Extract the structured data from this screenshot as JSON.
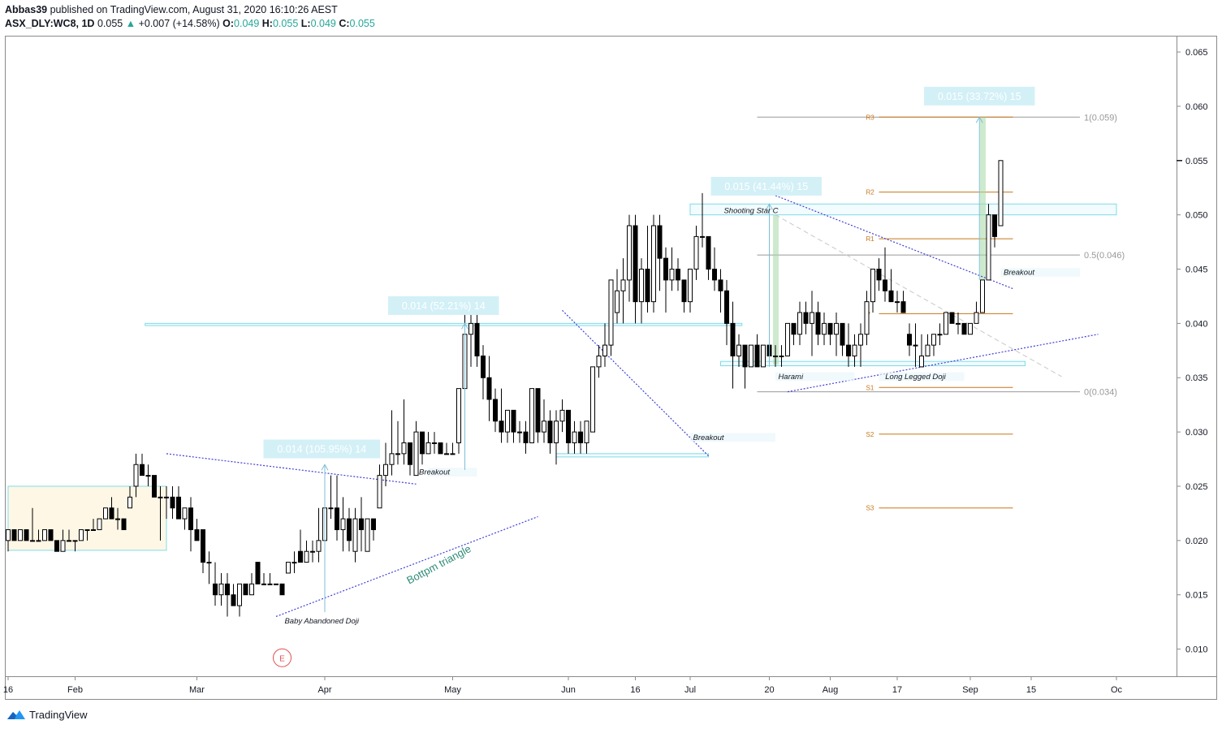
{
  "header": {
    "publisher": "Abbas39",
    "published_text": "published on TradingView.com, August 31, 2020 16:10:26 AEST",
    "symbol": "ASX_DLY:WC8, 1D",
    "last": "0.055",
    "change": "+0.007 (+14.58%)",
    "change_arrow": "▲",
    "o_label": "O:",
    "o_value": "0.049",
    "h_label": "H:",
    "h_value": "0.055",
    "l_label": "L:",
    "l_value": "0.049",
    "c_label": "C:",
    "c_value": "0.055"
  },
  "footer": {
    "brand": "TradingView",
    "logo_icon": "tradingview-logo-icon"
  },
  "colors": {
    "up_body": "#ffffff",
    "candle": "#000000",
    "trend": "#3f3fd9",
    "zone": "#7fdbe8",
    "zone_fill": "#fff7e6",
    "pivot": "#c8761a",
    "fib": "#999999",
    "measure_label_bg": "#d3f0f7",
    "measure_text": "#ffffff",
    "green_bar": "#a6d9a6",
    "bottom_text": "#2e8b76",
    "event_red": "#e05050"
  },
  "chart_data": {
    "type": "candlestick",
    "title": "ASX_DLY:WC8, 1D",
    "ylim": [
      0.0075,
      0.0665
    ],
    "y_ticks": [
      "0.065",
      "0.060",
      "0.055",
      "0.050",
      "0.045",
      "0.040",
      "0.035",
      "0.030",
      "0.025",
      "0.020",
      "0.015",
      "0.010"
    ],
    "x_ticks": [
      {
        "label": "16",
        "day": 0
      },
      {
        "label": "Feb",
        "day": 11
      },
      {
        "label": "Mar",
        "day": 31
      },
      {
        "label": "Apr",
        "day": 52
      },
      {
        "label": "May",
        "day": 73
      },
      {
        "label": "Jun",
        "day": 92
      },
      {
        "label": "16",
        "day": 103
      },
      {
        "label": "Jul",
        "day": 112
      },
      {
        "label": "20",
        "day": 125
      },
      {
        "label": "Aug",
        "day": 135
      },
      {
        "label": "17",
        "day": 146
      },
      {
        "label": "Sep",
        "day": 158
      },
      {
        "label": "15",
        "day": 168
      },
      {
        "label": "Oc",
        "day": 182
      }
    ],
    "last_price": "0.055",
    "candles": [
      [
        0.02,
        0.021,
        0.019,
        0.021
      ],
      [
        0.021,
        0.021,
        0.02,
        0.02
      ],
      [
        0.02,
        0.021,
        0.02,
        0.021
      ],
      [
        0.021,
        0.021,
        0.02,
        0.02
      ],
      [
        0.02,
        0.023,
        0.02,
        0.02
      ],
      [
        0.02,
        0.021,
        0.02,
        0.02
      ],
      [
        0.02,
        0.021,
        0.02,
        0.021
      ],
      [
        0.021,
        0.021,
        0.02,
        0.02
      ],
      [
        0.02,
        0.02,
        0.019,
        0.019
      ],
      [
        0.019,
        0.021,
        0.019,
        0.02
      ],
      [
        0.02,
        0.021,
        0.02,
        0.02
      ],
      [
        0.02,
        0.02,
        0.019,
        0.02
      ],
      [
        0.02,
        0.021,
        0.02,
        0.021
      ],
      [
        0.021,
        0.021,
        0.02,
        0.021
      ],
      [
        0.021,
        0.022,
        0.021,
        0.021
      ],
      [
        0.021,
        0.022,
        0.021,
        0.022
      ],
      [
        0.022,
        0.023,
        0.022,
        0.023
      ],
      [
        0.023,
        0.024,
        0.022,
        0.022
      ],
      [
        0.022,
        0.023,
        0.021,
        0.022
      ],
      [
        0.022,
        0.022,
        0.021,
        0.021
      ],
      [
        0.023,
        0.025,
        0.023,
        0.024
      ],
      [
        0.025,
        0.028,
        0.024,
        0.027
      ],
      [
        0.027,
        0.028,
        0.026,
        0.026
      ],
      [
        0.026,
        0.027,
        0.025,
        0.026
      ],
      [
        0.026,
        0.026,
        0.024,
        0.024
      ],
      [
        0.024,
        0.025,
        0.02,
        0.024
      ],
      [
        0.024,
        0.025,
        0.022,
        0.024
      ],
      [
        0.024,
        0.025,
        0.022,
        0.023
      ],
      [
        0.024,
        0.025,
        0.022,
        0.022
      ],
      [
        0.022,
        0.023,
        0.021,
        0.023
      ],
      [
        0.023,
        0.024,
        0.019,
        0.021
      ],
      [
        0.021,
        0.022,
        0.02,
        0.02
      ],
      [
        0.021,
        0.021,
        0.017,
        0.018
      ],
      [
        0.018,
        0.019,
        0.016,
        0.018
      ],
      [
        0.016,
        0.018,
        0.014,
        0.015
      ],
      [
        0.015,
        0.017,
        0.014,
        0.016
      ],
      [
        0.016,
        0.017,
        0.013,
        0.015
      ],
      [
        0.015,
        0.016,
        0.014,
        0.014
      ],
      [
        0.014,
        0.016,
        0.013,
        0.016
      ],
      [
        0.016,
        0.016,
        0.015,
        0.015
      ],
      [
        0.015,
        0.017,
        0.015,
        0.016
      ],
      [
        0.018,
        0.018,
        0.016,
        0.016
      ],
      [
        0.016,
        0.017,
        0.016,
        0.016
      ],
      [
        0.016,
        0.017,
        0.016,
        0.016
      ],
      [
        0.016,
        0.016,
        0.016,
        0.016
      ],
      [
        0.016,
        0.016,
        0.015,
        0.015
      ],
      [
        0.017,
        0.018,
        0.017,
        0.018
      ],
      [
        0.018,
        0.019,
        0.017,
        0.018
      ],
      [
        0.019,
        0.021,
        0.018,
        0.018
      ],
      [
        0.018,
        0.02,
        0.018,
        0.019
      ],
      [
        0.019,
        0.02,
        0.018,
        0.019
      ],
      [
        0.019,
        0.023,
        0.018,
        0.02
      ],
      [
        0.02,
        0.025,
        0.019,
        0.023
      ],
      [
        0.023,
        0.026,
        0.022,
        0.023
      ],
      [
        0.023,
        0.026,
        0.02,
        0.021
      ],
      [
        0.021,
        0.024,
        0.019,
        0.022
      ],
      [
        0.022,
        0.023,
        0.019,
        0.02
      ],
      [
        0.019,
        0.023,
        0.018,
        0.022
      ],
      [
        0.022,
        0.024,
        0.019,
        0.021
      ],
      [
        0.019,
        0.022,
        0.019,
        0.022
      ],
      [
        0.022,
        0.022,
        0.02,
        0.021
      ],
      [
        0.023,
        0.027,
        0.023,
        0.026
      ],
      [
        0.026,
        0.029,
        0.025,
        0.027
      ],
      [
        0.027,
        0.032,
        0.026,
        0.028
      ],
      [
        0.028,
        0.031,
        0.027,
        0.028
      ],
      [
        0.028,
        0.033,
        0.027,
        0.029
      ],
      [
        0.029,
        0.029,
        0.026,
        0.027
      ],
      [
        0.026,
        0.031,
        0.026,
        0.03
      ],
      [
        0.03,
        0.03,
        0.027,
        0.028
      ],
      [
        0.028,
        0.03,
        0.028,
        0.029
      ],
      [
        0.029,
        0.03,
        0.028,
        0.029
      ],
      [
        0.029,
        0.029,
        0.028,
        0.028
      ],
      [
        0.028,
        0.029,
        0.028,
        0.028
      ],
      [
        0.028,
        0.029,
        0.028,
        0.028
      ],
      [
        0.029,
        0.034,
        0.028,
        0.034
      ],
      [
        0.034,
        0.041,
        0.033,
        0.039
      ],
      [
        0.039,
        0.041,
        0.036,
        0.04
      ],
      [
        0.04,
        0.041,
        0.036,
        0.037
      ],
      [
        0.037,
        0.038,
        0.033,
        0.035
      ],
      [
        0.035,
        0.037,
        0.031,
        0.033
      ],
      [
        0.033,
        0.034,
        0.03,
        0.031
      ],
      [
        0.031,
        0.034,
        0.029,
        0.03
      ],
      [
        0.03,
        0.032,
        0.029,
        0.032
      ],
      [
        0.032,
        0.032,
        0.029,
        0.03
      ],
      [
        0.03,
        0.031,
        0.029,
        0.03
      ],
      [
        0.03,
        0.031,
        0.028,
        0.029
      ],
      [
        0.029,
        0.034,
        0.029,
        0.034
      ],
      [
        0.034,
        0.034,
        0.029,
        0.03
      ],
      [
        0.03,
        0.033,
        0.029,
        0.031
      ],
      [
        0.031,
        0.032,
        0.028,
        0.029
      ],
      [
        0.029,
        0.032,
        0.027,
        0.031
      ],
      [
        0.031,
        0.033,
        0.03,
        0.032
      ],
      [
        0.032,
        0.032,
        0.028,
        0.029
      ],
      [
        0.029,
        0.031,
        0.028,
        0.03
      ],
      [
        0.03,
        0.031,
        0.028,
        0.029
      ],
      [
        0.029,
        0.031,
        0.028,
        0.031
      ],
      [
        0.03,
        0.036,
        0.03,
        0.036
      ],
      [
        0.036,
        0.038,
        0.035,
        0.037
      ],
      [
        0.037,
        0.04,
        0.036,
        0.038
      ],
      [
        0.038,
        0.044,
        0.037,
        0.044
      ],
      [
        0.041,
        0.045,
        0.04,
        0.043
      ],
      [
        0.043,
        0.046,
        0.04,
        0.044
      ],
      [
        0.044,
        0.05,
        0.042,
        0.049
      ],
      [
        0.049,
        0.05,
        0.04,
        0.042
      ],
      [
        0.042,
        0.046,
        0.04,
        0.045
      ],
      [
        0.045,
        0.049,
        0.041,
        0.042
      ],
      [
        0.042,
        0.05,
        0.041,
        0.049
      ],
      [
        0.049,
        0.05,
        0.043,
        0.046
      ],
      [
        0.046,
        0.047,
        0.041,
        0.044
      ],
      [
        0.044,
        0.047,
        0.043,
        0.045
      ],
      [
        0.045,
        0.046,
        0.043,
        0.044
      ],
      [
        0.044,
        0.044,
        0.041,
        0.042
      ],
      [
        0.042,
        0.045,
        0.041,
        0.045
      ],
      [
        0.045,
        0.049,
        0.044,
        0.048
      ],
      [
        0.048,
        0.052,
        0.047,
        0.048
      ],
      [
        0.048,
        0.048,
        0.044,
        0.045
      ],
      [
        0.045,
        0.047,
        0.043,
        0.044
      ],
      [
        0.044,
        0.045,
        0.041,
        0.043
      ],
      [
        0.043,
        0.044,
        0.038,
        0.04
      ],
      [
        0.04,
        0.042,
        0.034,
        0.037
      ],
      [
        0.037,
        0.039,
        0.036,
        0.038
      ],
      [
        0.038,
        0.038,
        0.034,
        0.036
      ],
      [
        0.036,
        0.038,
        0.036,
        0.038
      ],
      [
        0.038,
        0.039,
        0.036,
        0.036
      ],
      [
        0.036,
        0.038,
        0.036,
        0.038
      ],
      [
        0.038,
        0.039,
        0.037,
        0.037
      ],
      [
        0.037,
        0.038,
        0.036,
        0.037
      ],
      [
        0.037,
        0.038,
        0.036,
        0.037
      ],
      [
        0.037,
        0.04,
        0.037,
        0.04
      ],
      [
        0.04,
        0.04,
        0.038,
        0.039
      ],
      [
        0.039,
        0.042,
        0.038,
        0.041
      ],
      [
        0.041,
        0.042,
        0.039,
        0.04
      ],
      [
        0.04,
        0.043,
        0.037,
        0.041
      ],
      [
        0.041,
        0.042,
        0.038,
        0.039
      ],
      [
        0.039,
        0.041,
        0.038,
        0.04
      ],
      [
        0.04,
        0.04,
        0.038,
        0.039
      ],
      [
        0.039,
        0.041,
        0.037,
        0.04
      ],
      [
        0.04,
        0.04,
        0.037,
        0.038
      ],
      [
        0.038,
        0.04,
        0.036,
        0.037
      ],
      [
        0.037,
        0.039,
        0.036,
        0.038
      ],
      [
        0.038,
        0.04,
        0.036,
        0.039
      ],
      [
        0.039,
        0.043,
        0.038,
        0.042
      ],
      [
        0.042,
        0.045,
        0.041,
        0.045
      ],
      [
        0.045,
        0.046,
        0.043,
        0.044
      ],
      [
        0.044,
        0.047,
        0.042,
        0.043
      ],
      [
        0.043,
        0.045,
        0.042,
        0.042
      ],
      [
        0.042,
        0.043,
        0.041,
        0.042
      ],
      [
        0.042,
        0.043,
        0.041,
        0.041
      ],
      [
        0.039,
        0.04,
        0.037,
        0.038
      ],
      [
        0.038,
        0.04,
        0.036,
        0.038
      ],
      [
        0.036,
        0.039,
        0.036,
        0.037
      ],
      [
        0.037,
        0.039,
        0.037,
        0.038
      ],
      [
        0.038,
        0.039,
        0.037,
        0.039
      ],
      [
        0.039,
        0.04,
        0.038,
        0.039
      ],
      [
        0.039,
        0.041,
        0.039,
        0.041
      ],
      [
        0.041,
        0.041,
        0.04,
        0.04
      ],
      [
        0.04,
        0.041,
        0.039,
        0.04
      ],
      [
        0.04,
        0.04,
        0.039,
        0.039
      ],
      [
        0.039,
        0.04,
        0.039,
        0.04
      ],
      [
        0.04,
        0.042,
        0.04,
        0.041
      ],
      [
        0.041,
        0.044,
        0.041,
        0.044
      ],
      [
        0.044,
        0.051,
        0.044,
        0.05
      ],
      [
        0.05,
        0.05,
        0.047,
        0.048
      ],
      [
        0.049,
        0.055,
        0.049,
        0.055
      ]
    ],
    "zones": [
      {
        "name": "base-range-zone",
        "d1": 0,
        "d2": 26,
        "y1": 0.025,
        "y2": 0.0191,
        "filled": true
      },
      {
        "name": "resistance-zone-040",
        "d1": 22.5,
        "d2": 120.5,
        "y1": 0.04,
        "y2": 0.0398,
        "filled": false
      },
      {
        "name": "support-zone-028",
        "d1": 90,
        "d2": 115,
        "y1": 0.028,
        "y2": 0.0277,
        "filled": false
      },
      {
        "name": "resistance-zone-050",
        "d1": 112,
        "d2": 182,
        "y1": 0.051,
        "y2": 0.05,
        "filled": false
      },
      {
        "name": "support-zone-036",
        "d1": 117,
        "d2": 167,
        "y1": 0.0365,
        "y2": 0.0361,
        "filled": false
      }
    ],
    "trendlines": [
      {
        "name": "resistance-trendline-1",
        "d1": 26,
        "y1": 0.028,
        "d2": 67,
        "y2": 0.0252
      },
      {
        "name": "bottom-triangle-trendline",
        "d1": 44,
        "y1": 0.013,
        "d2": 87,
        "y2": 0.0222
      },
      {
        "name": "wedge-trendline",
        "d1": 91,
        "y1": 0.0412,
        "d2": 115,
        "y2": 0.0278
      },
      {
        "name": "descending-trendline",
        "d1": 125,
        "y1": 0.052,
        "d2": 165,
        "y2": 0.0432
      },
      {
        "name": "ascending-trendline",
        "d1": 128,
        "y1": 0.0337,
        "d2": 179,
        "y2": 0.039
      }
    ],
    "dashed_lines": [
      {
        "name": "projection-dashed-line",
        "d1": 126,
        "y1": 0.05,
        "d2": 173,
        "y2": 0.0351
      }
    ],
    "measures": [
      {
        "name": "measure-arrow-1",
        "d": 52,
        "y1": 0.0134,
        "y2": 0.027,
        "label": "0.014 (105.95%) 14",
        "ld": 51.5,
        "ly": 0.0284
      },
      {
        "name": "measure-arrow-2",
        "d": 75,
        "y1": 0.0265,
        "y2": 0.04,
        "label": "0.014 (52.21%) 14",
        "ld": 71.5,
        "ly": 0.0416
      },
      {
        "name": "measure-arrow-3",
        "d": 125,
        "y1": 0.036,
        "y2": 0.051,
        "label": "0.015 (41.44%) 15",
        "ld": 124.5,
        "ly": 0.0526
      },
      {
        "name": "measure-arrow-4",
        "d": 159.5,
        "y1": 0.044,
        "y2": 0.059,
        "label": "0.015 (33.72%) 15",
        "ld": 159.5,
        "ly": 0.0609
      }
    ],
    "green_bars": [
      {
        "name": "green-bar-1",
        "d": 126,
        "y1": 0.05,
        "y2": 0.0362
      },
      {
        "name": "green-bar-2",
        "d": 160,
        "y1": 0.059,
        "y2": 0.044
      }
    ],
    "pivots": [
      {
        "label": "R3",
        "y": 0.059
      },
      {
        "label": "R2",
        "y": 0.0521
      },
      {
        "label": "R1",
        "y": 0.0478
      },
      {
        "label": "P",
        "y": 0.0409
      },
      {
        "label": "S1",
        "y": 0.0341
      },
      {
        "label": "S2",
        "y": 0.0298
      },
      {
        "label": "S3",
        "y": 0.023
      }
    ],
    "pivot_range": {
      "d1": 143,
      "d2": 165
    },
    "fibs": [
      {
        "label": "1(0.059)",
        "y": 0.059
      },
      {
        "label": "0.5(0.046)",
        "y": 0.0463
      },
      {
        "label": "0(0.034)",
        "y": 0.0337
      }
    ],
    "fib_range": {
      "d1": 123,
      "d2": 176
    },
    "annotations": [
      {
        "name": "annotation-baby-abandoned-doji",
        "text": "Baby Abandoned Doji",
        "d": 51.5,
        "y": 0.0126,
        "italic": true
      },
      {
        "name": "annotation-breakout-1",
        "text": "Breakout",
        "d": 70,
        "y": 0.0263,
        "italic": true
      },
      {
        "name": "annotation-breakout-2",
        "text": "Breakout",
        "d": 115,
        "y": 0.0295,
        "italic": true
      },
      {
        "name": "annotation-shooting-star",
        "text": "Shooting Star C",
        "d": 122,
        "y": 0.0504,
        "italic": true
      },
      {
        "name": "annotation-harami",
        "text": "Harami",
        "d": 128.5,
        "y": 0.0351,
        "italic": true
      },
      {
        "name": "annotation-long-legged-doji",
        "text": "Long Legged Doji",
        "d": 149,
        "y": 0.0351,
        "italic": true
      },
      {
        "name": "annotation-breakout-3",
        "text": "Breakout",
        "d": 166,
        "y": 0.0447,
        "italic": true
      }
    ],
    "label_boxes": [
      {
        "name": "breakout-label-bg-1",
        "d1": 69,
        "d2": 77,
        "y1": 0.0267,
        "y2": 0.0259
      },
      {
        "name": "breakout-label-bg-2",
        "d1": 112,
        "d2": 126,
        "y1": 0.0299,
        "y2": 0.0291
      },
      {
        "name": "harami-label-bg",
        "d1": 126,
        "d2": 139,
        "y1": 0.0355,
        "y2": 0.0347
      },
      {
        "name": "long-legged-doji-label-bg",
        "d1": 143,
        "d2": 157,
        "y1": 0.0355,
        "y2": 0.0347
      },
      {
        "name": "breakout-label-bg-3",
        "d1": 163,
        "d2": 176,
        "y1": 0.0451,
        "y2": 0.0443
      }
    ],
    "rotated_label": {
      "text": "Bottpm triangle",
      "d": 71,
      "y": 0.0175,
      "angle": -28
    },
    "event_marker": {
      "label": "E",
      "d": 45,
      "y": 0.0092
    }
  }
}
